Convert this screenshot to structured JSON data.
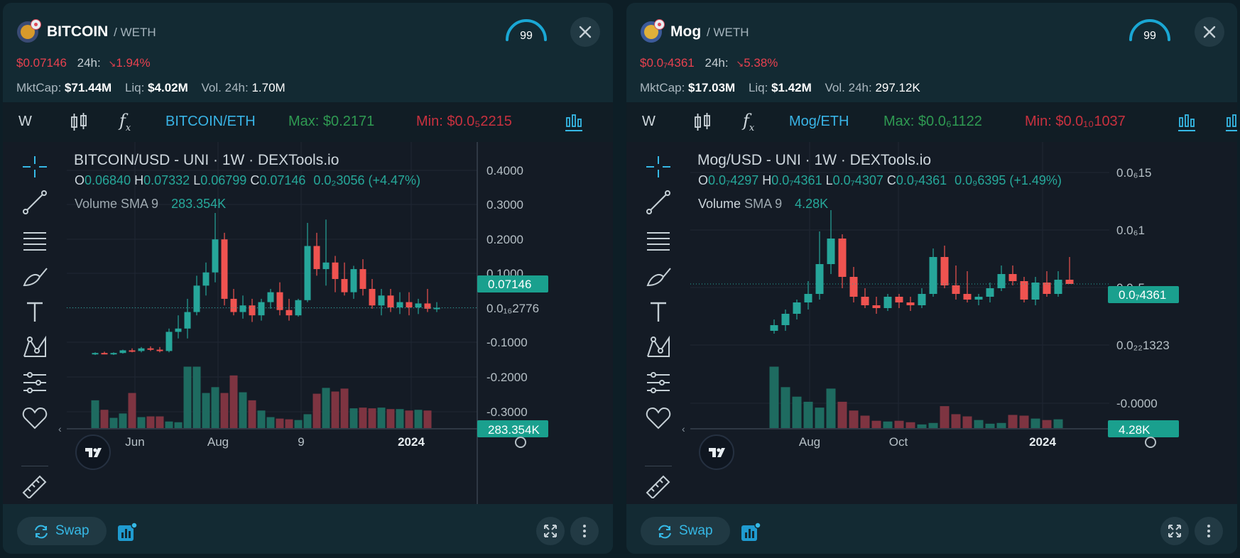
{
  "panels": [
    {
      "name": "BITCOIN",
      "quote": "/ WETH",
      "score": "99",
      "price": "$0.07146",
      "change_label": "24h:",
      "change": "1.94%",
      "mktcap_label": "MktCap:",
      "mktcap": "$71.44M",
      "liq_label": "Liq:",
      "liq": "$4.02M",
      "vol_label": "Vol. 24h:",
      "vol": "1.70M",
      "interval": "W",
      "pair_btn": "BITCOIN/ETH",
      "max": "Max: $0.2171",
      "min": "Min: $0.0₅2215",
      "chart_title": "BITCOIN/USD - UNI · 1W · DEXTools.io",
      "ohlc": {
        "o_label": "O",
        "o": "0.06840",
        "h_label": "H",
        "h": "0.07332",
        "l_label": "L",
        "l": "0.06799",
        "c_label": "C",
        "c": "0.07146",
        "chg": "0.0₂3056 (+4.47%)"
      },
      "volume_label": "Volume SMA 9",
      "volume_value": "283.354K",
      "price_tag": "0.07146",
      "volume_tag": "283.354K",
      "y_ticks": [
        "0.4000",
        "0.3000",
        "0.2000",
        "0.1000",
        "0.0₁₆2776",
        "-0.1000",
        "-0.2000",
        "-0.3000"
      ],
      "x_ticks": [
        "Jun",
        "Aug",
        "9",
        "2024"
      ],
      "swap_label": "Swap",
      "accent": "#36b9e6"
    },
    {
      "name": "Mog",
      "quote": "/ WETH",
      "score": "99",
      "price": "$0.0₇4361",
      "change_label": "24h:",
      "change": "5.38%",
      "mktcap_label": "MktCap:",
      "mktcap": "$17.03M",
      "liq_label": "Liq:",
      "liq": "$1.42M",
      "vol_label": "Vol. 24h:",
      "vol": "297.12K",
      "interval": "W",
      "pair_btn": "Mog/ETH",
      "max": "Max: $0.0₆1122",
      "min": "Min: $0.0₁₀1037",
      "chart_title": "Mog/USD - UNI · 1W · DEXTools.io",
      "ohlc": {
        "o_label": "O",
        "o": "0.0₇4297",
        "h_label": "H",
        "h": "0.0₇4361",
        "l_label": "L",
        "l": "0.0₇4307",
        "c_label": "C",
        "c": "0.0₇4361",
        "chg": "0.0₉6395 (+1.49%)"
      },
      "volume_label": "Volume",
      "volume_sma": "SMA 9",
      "volume_value": "4.28K",
      "price_tag": "0.0₇4361",
      "volume_tag": "4.28K",
      "y_ticks": [
        "0.0₆15",
        "0.0₆1",
        "0.0₆5",
        "0.0₂₂1323",
        "-0.0000"
      ],
      "x_ticks": [
        "Aug",
        "Oct",
        "2024"
      ],
      "swap_label": "Swap",
      "accent": "#36b9e6"
    }
  ],
  "chart_data": [
    {
      "type": "candlestick",
      "title": "BITCOIN/USD - UNI · 1W · DEXTools.io",
      "ylim": [
        -0.34,
        0.44
      ],
      "candles": [
        {
          "o": 0.002,
          "h": 0.004,
          "l": 0.0,
          "c": 0.003
        },
        {
          "o": 0.003,
          "h": 0.005,
          "l": 0.001,
          "c": 0.002
        },
        {
          "o": 0.002,
          "h": 0.004,
          "l": 0.0,
          "c": 0.003
        },
        {
          "o": 0.003,
          "h": 0.008,
          "l": 0.002,
          "c": 0.007
        },
        {
          "o": 0.007,
          "h": 0.01,
          "l": 0.004,
          "c": 0.006
        },
        {
          "o": 0.006,
          "h": 0.012,
          "l": 0.004,
          "c": 0.01
        },
        {
          "o": 0.01,
          "h": 0.013,
          "l": 0.006,
          "c": 0.008
        },
        {
          "o": 0.008,
          "h": 0.012,
          "l": 0.004,
          "c": 0.006
        },
        {
          "o": 0.006,
          "h": 0.04,
          "l": 0.004,
          "c": 0.035
        },
        {
          "o": 0.035,
          "h": 0.06,
          "l": 0.025,
          "c": 0.04
        },
        {
          "o": 0.04,
          "h": 0.085,
          "l": 0.025,
          "c": 0.065
        },
        {
          "o": 0.065,
          "h": 0.12,
          "l": 0.06,
          "c": 0.105
        },
        {
          "o": 0.105,
          "h": 0.14,
          "l": 0.09,
          "c": 0.125
        },
        {
          "o": 0.125,
          "h": 0.215,
          "l": 0.11,
          "c": 0.175
        },
        {
          "o": 0.175,
          "h": 0.185,
          "l": 0.075,
          "c": 0.085
        },
        {
          "o": 0.085,
          "h": 0.1,
          "l": 0.06,
          "c": 0.065
        },
        {
          "o": 0.065,
          "h": 0.09,
          "l": 0.055,
          "c": 0.075
        },
        {
          "o": 0.075,
          "h": 0.085,
          "l": 0.05,
          "c": 0.06
        },
        {
          "o": 0.06,
          "h": 0.085,
          "l": 0.052,
          "c": 0.08
        },
        {
          "o": 0.08,
          "h": 0.1,
          "l": 0.07,
          "c": 0.095
        },
        {
          "o": 0.095,
          "h": 0.11,
          "l": 0.06,
          "c": 0.068
        },
        {
          "o": 0.068,
          "h": 0.085,
          "l": 0.052,
          "c": 0.06
        },
        {
          "o": 0.06,
          "h": 0.085,
          "l": 0.058,
          "c": 0.083
        },
        {
          "o": 0.083,
          "h": 0.2,
          "l": 0.08,
          "c": 0.165
        },
        {
          "o": 0.165,
          "h": 0.185,
          "l": 0.12,
          "c": 0.13
        },
        {
          "o": 0.13,
          "h": 0.205,
          "l": 0.105,
          "c": 0.14
        },
        {
          "o": 0.14,
          "h": 0.15,
          "l": 0.095,
          "c": 0.115
        },
        {
          "o": 0.115,
          "h": 0.14,
          "l": 0.09,
          "c": 0.095
        },
        {
          "o": 0.095,
          "h": 0.135,
          "l": 0.085,
          "c": 0.13
        },
        {
          "o": 0.13,
          "h": 0.145,
          "l": 0.09,
          "c": 0.1
        },
        {
          "o": 0.1,
          "h": 0.115,
          "l": 0.07,
          "c": 0.075
        },
        {
          "o": 0.075,
          "h": 0.1,
          "l": 0.06,
          "c": 0.09
        },
        {
          "o": 0.09,
          "h": 0.1,
          "l": 0.065,
          "c": 0.072
        },
        {
          "o": 0.072,
          "h": 0.095,
          "l": 0.062,
          "c": 0.08
        },
        {
          "o": 0.08,
          "h": 0.095,
          "l": 0.06,
          "c": 0.072
        },
        {
          "o": 0.072,
          "h": 0.085,
          "l": 0.062,
          "c": 0.078
        },
        {
          "o": 0.078,
          "h": 0.1,
          "l": 0.065,
          "c": 0.07
        },
        {
          "o": 0.07,
          "h": 0.08,
          "l": 0.065,
          "c": 0.07146
        }
      ],
      "volume": [
        0.38,
        0.25,
        0.14,
        0.2,
        0.48,
        0.15,
        0.16,
        0.16,
        0.09,
        0.08,
        0.84,
        0.84,
        0.48,
        0.56,
        0.48,
        0.72,
        0.49,
        0.38,
        0.24,
        0.15,
        0.13,
        0.12,
        0.11,
        0.19,
        0.47,
        0.55,
        0.5,
        0.54,
        0.27,
        0.28,
        0.27,
        0.28,
        0.26,
        0.26,
        0.24,
        0.25,
        0.24,
        0.0
      ]
    },
    {
      "type": "candlestick",
      "title": "Mog/USD - UNI · 1W · DEXTools.io",
      "ylim": [
        -4e-07,
        1.6e-06
      ],
      "candles": [
        {
          "o": 1e-07,
          "h": 1.8e-07,
          "l": 8e-08,
          "c": 1.4e-07
        },
        {
          "o": 1.4e-07,
          "h": 2.5e-07,
          "l": 1e-07,
          "c": 2.2e-07
        },
        {
          "o": 2.2e-07,
          "h": 3.2e-07,
          "l": 1.8e-07,
          "c": 3e-07
        },
        {
          "o": 3e-07,
          "h": 4.5e-07,
          "l": 2.5e-07,
          "c": 3.6e-07
        },
        {
          "o": 3.6e-07,
          "h": 8e-07,
          "l": 3.2e-07,
          "c": 5.7e-07
        },
        {
          "o": 5.7e-07,
          "h": 9.5e-07,
          "l": 5e-07,
          "c": 7.5e-07
        },
        {
          "o": 7.5e-07,
          "h": 7.8e-07,
          "l": 4e-07,
          "c": 4.8e-07
        },
        {
          "o": 4.8e-07,
          "h": 5.5e-07,
          "l": 3e-07,
          "c": 3.4e-07
        },
        {
          "o": 3.4e-07,
          "h": 4e-07,
          "l": 2.6e-07,
          "c": 2.8e-07
        },
        {
          "o": 2.8e-07,
          "h": 3.4e-07,
          "l": 2.2e-07,
          "c": 2.6e-07
        },
        {
          "o": 2.6e-07,
          "h": 3.6e-07,
          "l": 2.4e-07,
          "c": 3.4e-07
        },
        {
          "o": 3.4e-07,
          "h": 3.6e-07,
          "l": 2.6e-07,
          "c": 3e-07
        },
        {
          "o": 3e-07,
          "h": 3.4e-07,
          "l": 2.4e-07,
          "c": 2.8e-07
        },
        {
          "o": 2.8e-07,
          "h": 4e-07,
          "l": 2.6e-07,
          "c": 3.6e-07
        },
        {
          "o": 3.6e-07,
          "h": 6.8e-07,
          "l": 3.4e-07,
          "c": 6.2e-07
        },
        {
          "o": 6.2e-07,
          "h": 7e-07,
          "l": 4e-07,
          "c": 4.2e-07
        },
        {
          "o": 4.2e-07,
          "h": 5.6e-07,
          "l": 3.2e-07,
          "c": 3.6e-07
        },
        {
          "o": 3.6e-07,
          "h": 5.2e-07,
          "l": 3e-07,
          "c": 3.2e-07
        },
        {
          "o": 3.2e-07,
          "h": 3.6e-07,
          "l": 2.8e-07,
          "c": 3.4e-07
        },
        {
          "o": 3.4e-07,
          "h": 4.4e-07,
          "l": 3e-07,
          "c": 4e-07
        },
        {
          "o": 4e-07,
          "h": 5.6e-07,
          "l": 3.8e-07,
          "c": 5e-07
        },
        {
          "o": 5e-07,
          "h": 5.6e-07,
          "l": 4.2e-07,
          "c": 4.5e-07
        },
        {
          "o": 4.5e-07,
          "h": 4.8e-07,
          "l": 3e-07,
          "c": 3.2e-07
        },
        {
          "o": 3.2e-07,
          "h": 4.8e-07,
          "l": 2.8e-07,
          "c": 4.4e-07
        },
        {
          "o": 4.4e-07,
          "h": 5.2e-07,
          "l": 3.4e-07,
          "c": 3.6e-07
        },
        {
          "o": 3.6e-07,
          "h": 5.2e-07,
          "l": 3.4e-07,
          "c": 4.6e-07
        },
        {
          "o": 4.6e-07,
          "h": 6.2e-07,
          "l": 4.4e-07,
          "c": 4.3e-07
        }
      ],
      "volume": [
        0.84,
        0.56,
        0.43,
        0.36,
        0.28,
        0.54,
        0.36,
        0.24,
        0.17,
        0.1,
        0.09,
        0.1,
        0.08,
        0.05,
        0.07,
        0.3,
        0.19,
        0.16,
        0.11,
        0.06,
        0.07,
        0.18,
        0.17,
        0.13,
        0.11,
        0.12,
        0.0
      ]
    }
  ]
}
